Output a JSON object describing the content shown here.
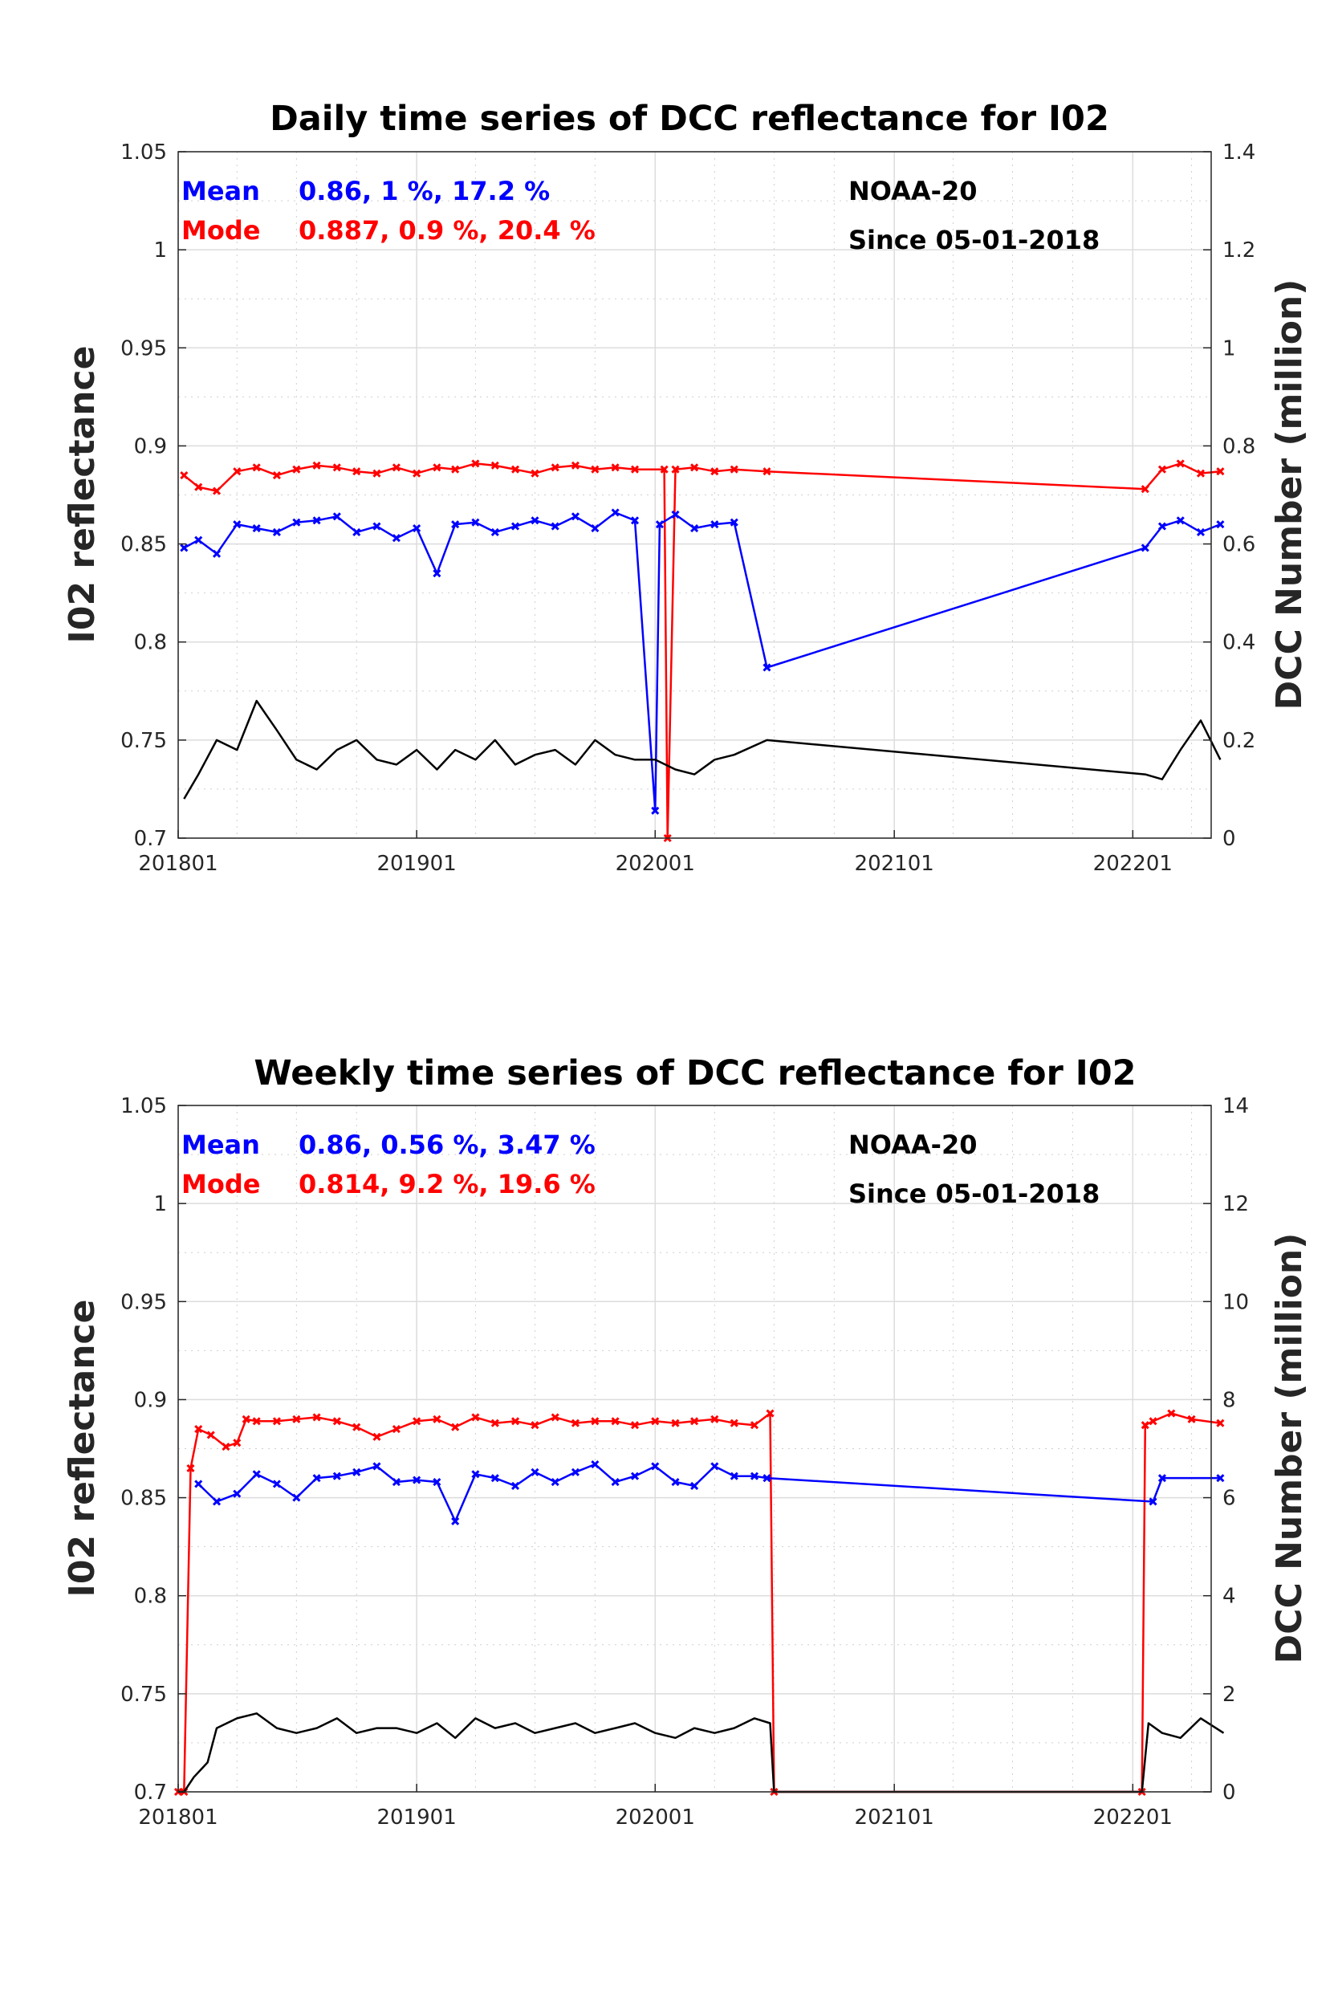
{
  "chart_data": [
    {
      "type": "line",
      "title": "Daily time series of DCC reflectance for I02",
      "ylabel": "I02 reflectance",
      "y2label": "DCC Number (million)",
      "x_ticks": [
        "201801",
        "201901",
        "202001",
        "202101",
        "202201"
      ],
      "xlim": [
        "201801",
        "202205"
      ],
      "ylim": [
        0.7,
        1.05
      ],
      "y_ticks": [
        "0.7",
        "0.75",
        "0.8",
        "0.85",
        "0.9",
        "0.95",
        "1",
        "1.05"
      ],
      "y2lim": [
        0,
        1.4
      ],
      "y2_ticks": [
        "0",
        "0.2",
        "0.4",
        "0.6",
        "0.8",
        "1",
        "1.2",
        "1.4"
      ],
      "grid": true,
      "annotations": {
        "mean_label": "Mean",
        "mean_stats": "0.86, 1 %, 17.2 %",
        "mode_label": "Mode",
        "mode_stats": "0.887, 0.9 %, 20.4 %",
        "satellite": "NOAA-20",
        "since": "Since 05-01-2018"
      },
      "series": [
        {
          "color": "#ff0000",
          "axis": "left",
          "marker": "x",
          "x": [
            "2018-01-10",
            "2018-02-01",
            "2018-03-01",
            "2018-04-01",
            "2018-05-01",
            "2018-06-01",
            "2018-07-01",
            "2018-08-01",
            "2018-09-01",
            "2018-10-01",
            "2018-11-01",
            "2018-12-01",
            "2019-01-01",
            "2019-02-01",
            "2019-03-01",
            "2019-04-01",
            "2019-05-01",
            "2019-06-01",
            "2019-07-01",
            "2019-08-01",
            "2019-09-01",
            "2019-10-01",
            "2019-11-01",
            "2019-12-01",
            "2020-01-15",
            "2020-01-20",
            "2020-02-01",
            "2020-03-01",
            "2020-04-01",
            "2020-05-01",
            "2020-06-20",
            "2022-01-20",
            "2022-02-15",
            "2022-03-15",
            "2022-04-15",
            "2022-05-15"
          ],
          "y": [
            0.885,
            0.879,
            0.877,
            0.887,
            0.889,
            0.885,
            0.888,
            0.89,
            0.889,
            0.887,
            0.886,
            0.889,
            0.886,
            0.889,
            0.888,
            0.891,
            0.89,
            0.888,
            0.886,
            0.889,
            0.89,
            0.888,
            0.889,
            0.888,
            0.888,
            0.7,
            0.888,
            0.889,
            0.887,
            0.888,
            0.887,
            0.878,
            0.888,
            0.891,
            0.886,
            0.887
          ]
        },
        {
          "color": "#0000ff",
          "axis": "left",
          "marker": "x",
          "x": [
            "2018-01-10",
            "2018-02-01",
            "2018-03-01",
            "2018-04-01",
            "2018-05-01",
            "2018-06-01",
            "2018-07-01",
            "2018-08-01",
            "2018-09-01",
            "2018-10-01",
            "2018-11-01",
            "2018-12-01",
            "2019-01-01",
            "2019-02-01",
            "2019-03-01",
            "2019-04-01",
            "2019-05-01",
            "2019-06-01",
            "2019-07-01",
            "2019-08-01",
            "2019-09-01",
            "2019-10-01",
            "2019-11-01",
            "2019-12-01",
            "2020-01-01",
            "2020-01-08",
            "2020-02-01",
            "2020-03-01",
            "2020-04-01",
            "2020-05-01",
            "2020-06-20",
            "2022-01-20",
            "2022-02-15",
            "2022-03-15",
            "2022-04-15",
            "2022-05-15"
          ],
          "y": [
            0.848,
            0.852,
            0.845,
            0.86,
            0.858,
            0.856,
            0.861,
            0.862,
            0.864,
            0.856,
            0.859,
            0.853,
            0.858,
            0.835,
            0.86,
            0.861,
            0.856,
            0.859,
            0.862,
            0.859,
            0.864,
            0.858,
            0.866,
            0.862,
            0.714,
            0.86,
            0.865,
            0.858,
            0.86,
            0.861,
            0.787,
            0.848,
            0.859,
            0.862,
            0.856,
            0.86
          ]
        },
        {
          "color": "#000000",
          "axis": "right",
          "marker": "none",
          "x": [
            "2018-01-10",
            "2018-02-01",
            "2018-03-01",
            "2018-04-01",
            "2018-05-01",
            "2018-06-01",
            "2018-07-01",
            "2018-08-01",
            "2018-09-01",
            "2018-10-01",
            "2018-11-01",
            "2018-12-01",
            "2019-01-01",
            "2019-02-01",
            "2019-03-01",
            "2019-04-01",
            "2019-05-01",
            "2019-06-01",
            "2019-07-01",
            "2019-08-01",
            "2019-09-01",
            "2019-10-01",
            "2019-11-01",
            "2019-12-01",
            "2020-01-01",
            "2020-02-01",
            "2020-03-01",
            "2020-04-01",
            "2020-05-01",
            "2020-06-20",
            "2022-01-20",
            "2022-02-15",
            "2022-03-15",
            "2022-04-15",
            "2022-05-15"
          ],
          "y": [
            0.08,
            0.13,
            0.2,
            0.18,
            0.28,
            0.22,
            0.16,
            0.14,
            0.18,
            0.2,
            0.16,
            0.15,
            0.18,
            0.14,
            0.18,
            0.16,
            0.2,
            0.15,
            0.17,
            0.18,
            0.15,
            0.2,
            0.17,
            0.16,
            0.16,
            0.14,
            0.13,
            0.16,
            0.17,
            0.2,
            0.13,
            0.12,
            0.18,
            0.24,
            0.16
          ]
        }
      ]
    },
    {
      "type": "line",
      "title": "Weekly time series of DCC reflectance for I02",
      "ylabel": "I02 reflectance",
      "y2label": "DCC Number (million)",
      "x_ticks": [
        "201801",
        "201901",
        "202001",
        "202101",
        "202201"
      ],
      "xlim": [
        "201801",
        "202205"
      ],
      "ylim": [
        0.7,
        1.05
      ],
      "y_ticks": [
        "0.7",
        "0.75",
        "0.8",
        "0.85",
        "0.9",
        "0.95",
        "1",
        "1.05"
      ],
      "y2lim": [
        0,
        14
      ],
      "y2_ticks": [
        "0",
        "2",
        "4",
        "6",
        "8",
        "10",
        "12",
        "14"
      ],
      "grid": true,
      "annotations": {
        "mean_label": "Mean",
        "mean_stats": "0.86, 0.56 %, 3.47 %",
        "mode_label": "Mode",
        "mode_stats": "0.814, 9.2 %, 19.6 %",
        "satellite": "NOAA-20",
        "since": "Since 05-01-2018"
      },
      "series": [
        {
          "color": "#ff0000",
          "axis": "left",
          "marker": "x",
          "x": [
            "2018-01-01",
            "2018-01-10",
            "2018-01-20",
            "2018-02-01",
            "2018-02-20",
            "2018-03-15",
            "2018-04-01",
            "2018-04-15",
            "2018-05-01",
            "2018-06-01",
            "2018-07-01",
            "2018-08-01",
            "2018-09-01",
            "2018-10-01",
            "2018-11-01",
            "2018-12-01",
            "2019-01-01",
            "2019-02-01",
            "2019-03-01",
            "2019-04-01",
            "2019-05-01",
            "2019-06-01",
            "2019-07-01",
            "2019-08-01",
            "2019-09-01",
            "2019-10-01",
            "2019-11-01",
            "2019-12-01",
            "2020-01-01",
            "2020-02-01",
            "2020-03-01",
            "2020-04-01",
            "2020-05-01",
            "2020-06-01",
            "2020-06-25",
            "2020-07-01",
            "2022-01-15",
            "2022-01-20",
            "2022-02-01",
            "2022-03-01",
            "2022-04-01",
            "2022-05-15"
          ],
          "y": [
            0.7,
            0.7,
            0.865,
            0.885,
            0.882,
            0.876,
            0.878,
            0.89,
            0.889,
            0.889,
            0.89,
            0.891,
            0.889,
            0.886,
            0.881,
            0.885,
            0.889,
            0.89,
            0.886,
            0.891,
            0.888,
            0.889,
            0.887,
            0.891,
            0.888,
            0.889,
            0.889,
            0.887,
            0.889,
            0.888,
            0.889,
            0.89,
            0.888,
            0.887,
            0.893,
            0.7,
            0.7,
            0.887,
            0.889,
            0.893,
            0.89,
            0.888
          ]
        },
        {
          "color": "#0000ff",
          "axis": "left",
          "marker": "x",
          "x": [
            "2018-02-01",
            "2018-03-01",
            "2018-04-01",
            "2018-05-01",
            "2018-06-01",
            "2018-07-01",
            "2018-08-01",
            "2018-09-01",
            "2018-10-01",
            "2018-11-01",
            "2018-12-01",
            "2019-01-01",
            "2019-02-01",
            "2019-03-01",
            "2019-04-01",
            "2019-05-01",
            "2019-06-01",
            "2019-07-01",
            "2019-08-01",
            "2019-09-01",
            "2019-10-01",
            "2019-11-01",
            "2019-12-01",
            "2020-01-01",
            "2020-02-01",
            "2020-03-01",
            "2020-04-01",
            "2020-05-01",
            "2020-06-01",
            "2020-06-20",
            "2022-02-01",
            "2022-02-15",
            "2022-05-15"
          ],
          "y": [
            0.857,
            0.848,
            0.852,
            0.862,
            0.857,
            0.85,
            0.86,
            0.861,
            0.863,
            0.866,
            0.858,
            0.859,
            0.858,
            0.838,
            0.862,
            0.86,
            0.856,
            0.863,
            0.858,
            0.863,
            0.867,
            0.858,
            0.861,
            0.866,
            0.858,
            0.856,
            0.866,
            0.861,
            0.861,
            0.86,
            0.848,
            0.86,
            0.86
          ]
        },
        {
          "color": "#000000",
          "axis": "right",
          "marker": "none",
          "x": [
            "2018-01-01",
            "2018-01-10",
            "2018-01-25",
            "2018-02-15",
            "2018-03-01",
            "2018-04-01",
            "2018-05-01",
            "2018-06-01",
            "2018-07-01",
            "2018-08-01",
            "2018-09-01",
            "2018-10-01",
            "2018-11-01",
            "2018-12-01",
            "2019-01-01",
            "2019-02-01",
            "2019-03-01",
            "2019-04-01",
            "2019-05-01",
            "2019-06-01",
            "2019-07-01",
            "2019-08-01",
            "2019-09-01",
            "2019-10-01",
            "2019-11-01",
            "2019-12-01",
            "2020-01-01",
            "2020-02-01",
            "2020-03-01",
            "2020-04-01",
            "2020-05-01",
            "2020-06-01",
            "2020-06-25",
            "2020-07-01",
            "2022-01-15",
            "2022-01-25",
            "2022-02-15",
            "2022-03-15",
            "2022-04-15",
            "2022-05-20"
          ],
          "y": [
            0,
            0,
            0.3,
            0.6,
            1.3,
            1.5,
            1.6,
            1.3,
            1.2,
            1.3,
            1.5,
            1.2,
            1.3,
            1.3,
            1.2,
            1.4,
            1.1,
            1.5,
            1.3,
            1.4,
            1.2,
            1.3,
            1.4,
            1.2,
            1.3,
            1.4,
            1.2,
            1.1,
            1.3,
            1.2,
            1.3,
            1.5,
            1.4,
            0,
            0,
            1.4,
            1.2,
            1.1,
            1.5,
            1.2
          ]
        }
      ]
    }
  ]
}
